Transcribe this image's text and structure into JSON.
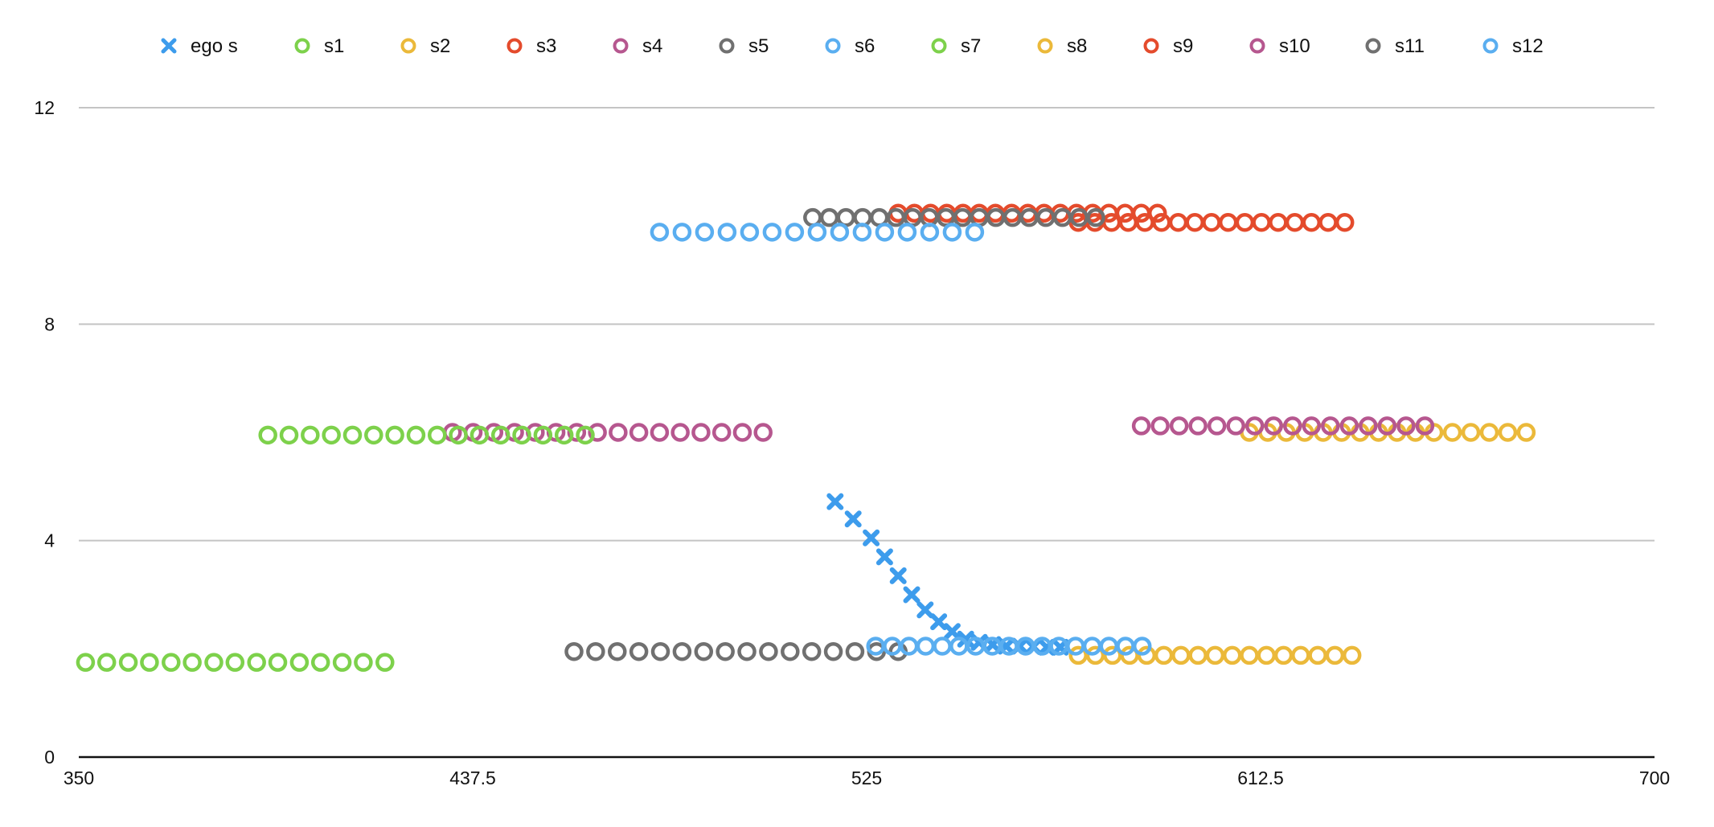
{
  "chart_data": {
    "type": "scatter",
    "title": "",
    "xlabel": "",
    "ylabel": "",
    "xlim": [
      350,
      700
    ],
    "ylim": [
      0,
      12
    ],
    "x_ticks": [
      "350",
      "437.5",
      "525",
      "612.5",
      "700"
    ],
    "y_ticks": [
      "0",
      "4",
      "8",
      "12"
    ],
    "grid": "horizontal",
    "legend_position": "top",
    "series": [
      {
        "name": "ego s",
        "marker": "x",
        "color": "#3d9cec",
        "points": [
          [
            518,
            4.72
          ],
          [
            522,
            4.4
          ],
          [
            526,
            4.05
          ],
          [
            529,
            3.7
          ],
          [
            532,
            3.35
          ],
          [
            535,
            3.0
          ],
          [
            538,
            2.72
          ],
          [
            541,
            2.5
          ],
          [
            544,
            2.32
          ],
          [
            547,
            2.18
          ],
          [
            550,
            2.12
          ],
          [
            553,
            2.08
          ],
          [
            556,
            2.05
          ],
          [
            559,
            2.05
          ],
          [
            562,
            2.04
          ],
          [
            565,
            2.03
          ],
          [
            568,
            2.03
          ]
        ]
      },
      {
        "name": "s1",
        "marker": "o",
        "color": "#7dd14b",
        "points": [
          [
            351.5,
            1.75
          ],
          [
            356.2,
            1.75
          ],
          [
            361.0,
            1.75
          ],
          [
            365.7,
            1.75
          ],
          [
            370.5,
            1.75
          ],
          [
            375.2,
            1.75
          ],
          [
            380.0,
            1.75
          ],
          [
            384.7,
            1.75
          ],
          [
            389.5,
            1.75
          ],
          [
            394.2,
            1.75
          ],
          [
            399.0,
            1.75
          ],
          [
            403.7,
            1.75
          ],
          [
            408.5,
            1.75
          ],
          [
            413.2,
            1.75
          ],
          [
            418.0,
            1.75
          ]
        ]
      },
      {
        "name": "s2",
        "marker": "o",
        "color": "#ebb93a",
        "points": [
          [
            572,
            1.88
          ],
          [
            575.8,
            1.88
          ],
          [
            579.6,
            1.88
          ],
          [
            583.4,
            1.88
          ],
          [
            587.2,
            1.88
          ],
          [
            591.0,
            1.88
          ],
          [
            594.8,
            1.88
          ],
          [
            598.6,
            1.88
          ],
          [
            602.4,
            1.88
          ],
          [
            606.2,
            1.88
          ],
          [
            610.0,
            1.88
          ],
          [
            613.8,
            1.88
          ],
          [
            617.6,
            1.88
          ],
          [
            621.4,
            1.88
          ],
          [
            625.2,
            1.88
          ],
          [
            629.0,
            1.88
          ],
          [
            632.8,
            1.88
          ]
        ]
      },
      {
        "name": "s3",
        "marker": "o",
        "color": "#e44b2c",
        "points": [
          [
            572,
            9.88
          ],
          [
            575.7,
            9.88
          ],
          [
            579.4,
            9.88
          ],
          [
            583.1,
            9.88
          ],
          [
            586.8,
            9.88
          ],
          [
            590.5,
            9.88
          ],
          [
            594.2,
            9.88
          ],
          [
            597.9,
            9.88
          ],
          [
            601.6,
            9.88
          ],
          [
            605.3,
            9.88
          ],
          [
            609.0,
            9.88
          ],
          [
            612.7,
            9.88
          ],
          [
            616.4,
            9.88
          ],
          [
            620.1,
            9.88
          ],
          [
            623.8,
            9.88
          ],
          [
            627.5,
            9.88
          ],
          [
            631.2,
            9.88
          ]
        ]
      },
      {
        "name": "s4",
        "marker": "o",
        "color": "#b6578f",
        "points": [
          [
            433,
            6.0
          ],
          [
            437.6,
            6.0
          ],
          [
            442.2,
            6.0
          ],
          [
            446.8,
            6.0
          ],
          [
            451.4,
            6.0
          ],
          [
            456.0,
            6.0
          ],
          [
            460.6,
            6.0
          ],
          [
            465.2,
            6.0
          ],
          [
            469.8,
            6.0
          ],
          [
            474.4,
            6.0
          ],
          [
            479.0,
            6.0
          ],
          [
            483.6,
            6.0
          ],
          [
            488.2,
            6.0
          ],
          [
            492.8,
            6.0
          ],
          [
            497.4,
            6.0
          ],
          [
            502.0,
            6.0
          ]
        ]
      },
      {
        "name": "s5",
        "marker": "o",
        "color": "#707070",
        "points": [
          [
            460,
            1.95
          ],
          [
            464.8,
            1.95
          ],
          [
            469.6,
            1.95
          ],
          [
            474.4,
            1.95
          ],
          [
            479.2,
            1.95
          ],
          [
            484.0,
            1.95
          ],
          [
            488.8,
            1.95
          ],
          [
            493.6,
            1.95
          ],
          [
            498.4,
            1.95
          ],
          [
            503.2,
            1.95
          ],
          [
            508.0,
            1.95
          ],
          [
            512.8,
            1.95
          ],
          [
            517.6,
            1.95
          ],
          [
            522.4,
            1.95
          ],
          [
            527.2,
            1.95
          ],
          [
            532.0,
            1.95
          ]
        ]
      },
      {
        "name": "s6",
        "marker": "o",
        "color": "#5aaef0",
        "points": [
          [
            527,
            2.05
          ],
          [
            530.7,
            2.05
          ],
          [
            534.4,
            2.05
          ],
          [
            538.1,
            2.05
          ],
          [
            541.8,
            2.05
          ],
          [
            545.5,
            2.05
          ],
          [
            549.2,
            2.05
          ],
          [
            552.9,
            2.05
          ],
          [
            556.6,
            2.05
          ],
          [
            560.3,
            2.05
          ],
          [
            564.0,
            2.05
          ],
          [
            567.7,
            2.05
          ],
          [
            571.4,
            2.05
          ],
          [
            575.1,
            2.05
          ],
          [
            578.8,
            2.05
          ],
          [
            582.5,
            2.05
          ],
          [
            586.2,
            2.05
          ]
        ]
      },
      {
        "name": "s7",
        "marker": "o",
        "color": "#7dd14b",
        "points": [
          [
            392,
            5.95
          ],
          [
            396.7,
            5.95
          ],
          [
            401.4,
            5.95
          ],
          [
            406.1,
            5.95
          ],
          [
            410.8,
            5.95
          ],
          [
            415.5,
            5.95
          ],
          [
            420.2,
            5.95
          ],
          [
            424.9,
            5.95
          ],
          [
            429.6,
            5.95
          ],
          [
            434.3,
            5.95
          ],
          [
            439.0,
            5.95
          ],
          [
            443.7,
            5.95
          ],
          [
            448.4,
            5.95
          ],
          [
            453.1,
            5.95
          ],
          [
            457.8,
            5.95
          ],
          [
            462.5,
            5.95
          ]
        ]
      },
      {
        "name": "s8",
        "marker": "o",
        "color": "#ebb93a",
        "points": [
          [
            610,
            6.0
          ],
          [
            614.1,
            6.0
          ],
          [
            618.2,
            6.0
          ],
          [
            622.3,
            6.0
          ],
          [
            626.4,
            6.0
          ],
          [
            630.5,
            6.0
          ],
          [
            634.6,
            6.0
          ],
          [
            638.7,
            6.0
          ],
          [
            642.8,
            6.0
          ],
          [
            646.9,
            6.0
          ],
          [
            651.0,
            6.0
          ],
          [
            655.1,
            6.0
          ],
          [
            659.2,
            6.0
          ],
          [
            663.3,
            6.0
          ],
          [
            667.4,
            6.0
          ],
          [
            671.5,
            6.0
          ]
        ]
      },
      {
        "name": "s9",
        "marker": "o",
        "color": "#e44b2c",
        "points": [
          [
            532,
            10.05
          ],
          [
            535.6,
            10.05
          ],
          [
            539.2,
            10.05
          ],
          [
            542.8,
            10.05
          ],
          [
            546.4,
            10.05
          ],
          [
            550.0,
            10.05
          ],
          [
            553.6,
            10.05
          ],
          [
            557.2,
            10.05
          ],
          [
            560.8,
            10.05
          ],
          [
            564.4,
            10.05
          ],
          [
            568.0,
            10.05
          ],
          [
            571.6,
            10.05
          ],
          [
            575.2,
            10.05
          ],
          [
            578.8,
            10.05
          ],
          [
            582.4,
            10.05
          ],
          [
            586.0,
            10.05
          ],
          [
            589.6,
            10.05
          ]
        ]
      },
      {
        "name": "s10",
        "marker": "o",
        "color": "#b6578f",
        "points": [
          [
            586,
            6.12
          ],
          [
            590.2,
            6.12
          ],
          [
            594.4,
            6.12
          ],
          [
            598.6,
            6.12
          ],
          [
            602.8,
            6.12
          ],
          [
            607.0,
            6.12
          ],
          [
            611.2,
            6.12
          ],
          [
            615.4,
            6.12
          ],
          [
            619.6,
            6.12
          ],
          [
            623.8,
            6.12
          ],
          [
            628.0,
            6.12
          ],
          [
            632.2,
            6.12
          ],
          [
            636.4,
            6.12
          ],
          [
            640.6,
            6.12
          ],
          [
            644.8,
            6.12
          ],
          [
            649.0,
            6.12
          ]
        ]
      },
      {
        "name": "s11",
        "marker": "o",
        "color": "#707070",
        "points": [
          [
            513,
            9.97
          ],
          [
            516.7,
            9.97
          ],
          [
            520.4,
            9.97
          ],
          [
            524.1,
            9.97
          ],
          [
            527.8,
            9.97
          ],
          [
            531.5,
            9.97
          ],
          [
            535.2,
            9.97
          ],
          [
            538.9,
            9.97
          ],
          [
            542.6,
            9.97
          ],
          [
            546.3,
            9.97
          ],
          [
            550.0,
            9.97
          ],
          [
            553.7,
            9.97
          ],
          [
            557.4,
            9.97
          ],
          [
            561.1,
            9.97
          ],
          [
            564.8,
            9.97
          ],
          [
            568.5,
            9.97
          ],
          [
            572.2,
            9.97
          ],
          [
            575.9,
            9.97
          ]
        ]
      },
      {
        "name": "s12",
        "marker": "o",
        "color": "#5aaef0",
        "points": [
          [
            479,
            9.7
          ],
          [
            484.0,
            9.7
          ],
          [
            489.0,
            9.7
          ],
          [
            494.0,
            9.7
          ],
          [
            499.0,
            9.7
          ],
          [
            504.0,
            9.7
          ],
          [
            509.0,
            9.7
          ],
          [
            514.0,
            9.7
          ],
          [
            519.0,
            9.7
          ],
          [
            524.0,
            9.7
          ],
          [
            529.0,
            9.7
          ],
          [
            534.0,
            9.7
          ],
          [
            539.0,
            9.7
          ],
          [
            544.0,
            9.7
          ],
          [
            549.0,
            9.7
          ]
        ]
      }
    ]
  }
}
